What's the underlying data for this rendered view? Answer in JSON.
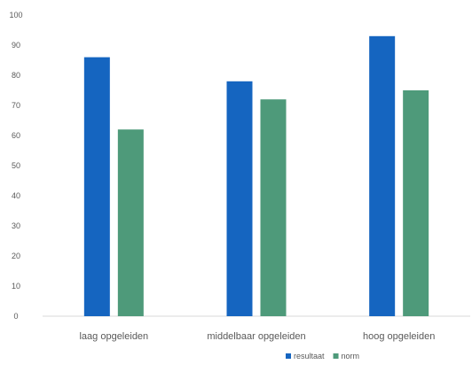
{
  "chart_data": {
    "type": "bar",
    "title": "",
    "xlabel": "",
    "ylabel": "",
    "categories": [
      "laag opgeleiden",
      "middelbaar opgeleiden",
      "hoog opgeleiden"
    ],
    "series": [
      {
        "name": "resultaat",
        "values": [
          86,
          78,
          93
        ],
        "color": "#1565C0"
      },
      {
        "name": "norm",
        "values": [
          62,
          72,
          75
        ],
        "color": "#4E9A7A"
      }
    ],
    "ylim": [
      0,
      100
    ],
    "yticks": [
      0,
      10,
      20,
      30,
      40,
      50,
      60,
      70,
      80,
      90,
      100
    ],
    "grid": false,
    "legend_position": "bottom-right"
  }
}
